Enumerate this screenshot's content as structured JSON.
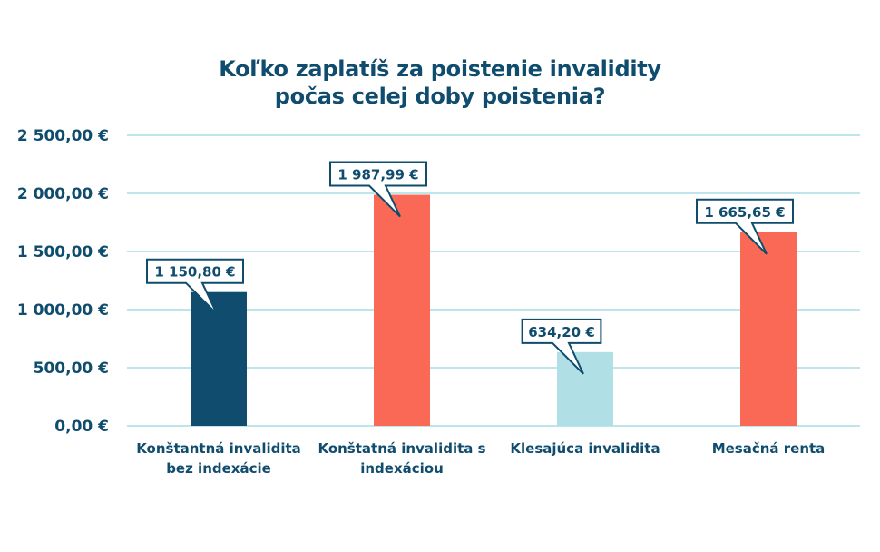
{
  "chart_data": {
    "type": "bar",
    "title_lines": [
      "Koľko zaplatíš za poistenie invalidity",
      "počas celej doby poistenia?"
    ],
    "categories": [
      [
        "Konštantná invalidita",
        "bez indexácie"
      ],
      [
        "Konštatná invalidita s",
        "indexáciou"
      ],
      [
        "Klesajúca invalidita"
      ],
      [
        "Mesačná renta"
      ]
    ],
    "values": [
      1150.8,
      1987.99,
      634.2,
      1665.65
    ],
    "data_labels": [
      "1 150,80 €",
      "1 987,99 €",
      "634,20 €",
      "1 665,65 €"
    ],
    "bar_colors": [
      "#0f4c6e",
      "#f96955",
      "#b1dfe6",
      "#f96955"
    ],
    "ylim": [
      0,
      2500
    ],
    "yticks": [
      0,
      500,
      1000,
      1500,
      2000,
      2500
    ],
    "ytick_labels": [
      "0,00 €",
      "500,00 €",
      "1 000,00 €",
      "1 500,00 €",
      "2 000,00 €",
      "2 500,00 €"
    ],
    "grid": true,
    "grid_color": "#a9dde3",
    "text_color": "#0f4c6e",
    "callout_border_color": "#0f4c6e"
  }
}
